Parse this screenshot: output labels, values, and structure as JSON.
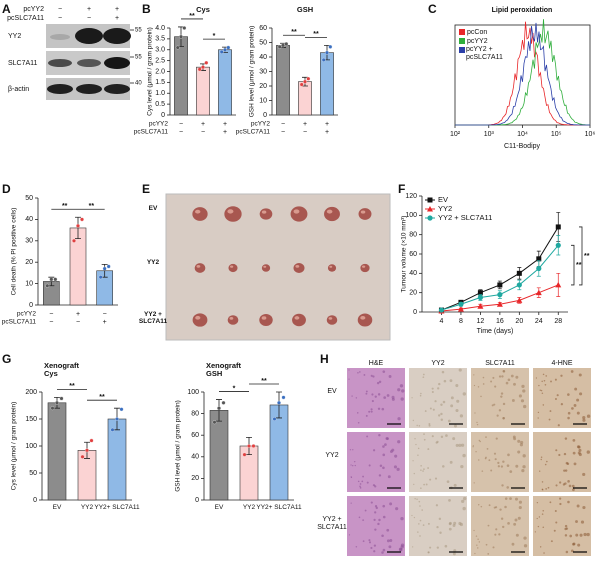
{
  "panel_labels": [
    "A",
    "B",
    "C",
    "D",
    "E",
    "F",
    "G",
    "H"
  ],
  "blot": {
    "conditions": [
      {
        "name": "pcYY2",
        "marks": [
          "−",
          "+",
          "+"
        ]
      },
      {
        "name": "pcSLC7A11",
        "marks": [
          "−",
          "−",
          "+"
        ]
      }
    ],
    "rows": [
      {
        "name": "YY2",
        "marker": 55
      },
      {
        "name": "SLC7A11",
        "marker": 55
      },
      {
        "name": "β-actin",
        "marker": 40
      }
    ]
  },
  "flow": {
    "title": "Lipid peroxidation",
    "xlabel": "C11-Bodipy",
    "xticks": [
      {
        "value": 100,
        "label": "10²"
      },
      {
        "value": 1000,
        "label": "10³"
      },
      {
        "value": 10000,
        "label": "10⁴"
      },
      {
        "value": 100000,
        "label": "10⁵"
      },
      {
        "value": 1000000,
        "label": "10⁶"
      }
    ],
    "legend": [
      {
        "name": "pcCon",
        "color": "#e8272a"
      },
      {
        "name": "pcYY2",
        "color": "#2fae3c"
      },
      {
        "name": "pcYY2 + pcSLC7A11",
        "color": "#2b3fa8"
      }
    ]
  },
  "tumor_photo": {
    "rows": [
      "EV",
      "YY2",
      "YY2 + SLC7A11"
    ]
  },
  "histology": {
    "columns": [
      "H&E",
      "YY2",
      "SLC7A11",
      "4-HNE"
    ],
    "rows": [
      "EV",
      "YY2",
      "YY2 + SLC7A11"
    ]
  },
  "chart_data": [
    {
      "type": "bar",
      "title": "Cys",
      "ylabel": "Cys level (μmol / gram protein)",
      "conditions": [
        {
          "name": "pcYY2",
          "marks": [
            "−",
            "+",
            "+"
          ]
        },
        {
          "name": "pcSLC7A11",
          "marks": [
            "−",
            "−",
            "+"
          ]
        }
      ],
      "values": [
        3.6,
        2.2,
        3.0
      ],
      "errors": [
        0.45,
        0.15,
        0.12
      ],
      "points": [
        [
          3.1,
          3.6,
          4.0
        ],
        [
          2.1,
          2.2,
          2.4
        ],
        [
          2.9,
          3.0,
          3.1
        ]
      ],
      "colors": [
        "#8c8c8c",
        "#fbd3d3",
        "#8fb9e6"
      ],
      "point_colors": [
        "#555555",
        "#e14040",
        "#3b6fc0"
      ],
      "ylim": [
        0,
        4
      ],
      "yticks": [
        0,
        0.5,
        {
          "value": 1,
          "label": "1.0"
        },
        1.5,
        {
          "value": 2,
          "label": "2.0"
        },
        2.5,
        {
          "value": 3,
          "label": "3.0"
        },
        3.5,
        {
          "value": 4,
          "label": "4.0"
        }
      ],
      "significance": [
        "**",
        "*"
      ]
    },
    {
      "type": "bar",
      "title": "GSH",
      "ylabel": "GSH level (μmol / gram protein)",
      "conditions": [
        {
          "name": "pcYY2",
          "marks": [
            "−",
            "+",
            "+"
          ]
        },
        {
          "name": "pcSLC7A11",
          "marks": [
            "−",
            "−",
            "+"
          ]
        }
      ],
      "values": [
        48,
        23,
        43
      ],
      "errors": [
        1.5,
        3,
        5
      ],
      "points": [
        [
          47,
          48,
          49
        ],
        [
          21,
          23,
          25
        ],
        [
          38,
          43,
          47
        ]
      ],
      "colors": [
        "#8c8c8c",
        "#fbd3d3",
        "#8fb9e6"
      ],
      "point_colors": [
        "#555555",
        "#e14040",
        "#3b6fc0"
      ],
      "ylim": [
        0,
        60
      ],
      "yticks": [
        0,
        10,
        20,
        30,
        40,
        50,
        60
      ],
      "significance": [
        "**",
        "**"
      ]
    },
    {
      "type": "bar",
      "ylabel": "Cell death (% PI positive cells)",
      "conditions": [
        {
          "name": "pcYY2",
          "marks": [
            "−",
            "+",
            "−"
          ]
        },
        {
          "name": "pcSLC7A11",
          "marks": [
            "−",
            "−",
            "+"
          ]
        }
      ],
      "values": [
        11,
        36,
        16
      ],
      "errors": [
        2,
        5,
        3
      ],
      "points": [
        [
          9,
          12,
          12
        ],
        [
          30,
          37,
          40
        ],
        [
          13,
          17,
          18
        ]
      ],
      "colors": [
        "#8c8c8c",
        "#fbd3d3",
        "#8fb9e6"
      ],
      "point_colors": [
        "#555555",
        "#e14040",
        "#3b6fc0"
      ],
      "ylim": [
        0,
        50
      ],
      "yticks": [
        0,
        10,
        20,
        30,
        40,
        50
      ],
      "significance": [
        "**",
        "**"
      ]
    },
    {
      "type": "line",
      "xlabel": "Time (days)",
      "ylabel": "Tumour volume (×10 mm³)",
      "x": [
        4,
        8,
        12,
        16,
        20,
        24,
        28
      ],
      "xlim": [
        0,
        30
      ],
      "xticks": [
        4,
        8,
        12,
        16,
        20,
        24,
        28
      ],
      "ylim": [
        0,
        120
      ],
      "yticks": [
        0,
        20,
        40,
        60,
        80,
        100,
        120
      ],
      "series": [
        {
          "name": "EV",
          "color": "#111111",
          "marker": "square",
          "values": [
            2,
            10,
            20,
            28,
            40,
            55,
            88
          ],
          "errors": [
            1,
            2,
            3,
            4,
            6,
            8,
            15
          ]
        },
        {
          "name": "YY2",
          "color": "#e8272a",
          "marker": "triangle",
          "values": [
            1,
            3,
            6,
            8,
            12,
            20,
            28
          ],
          "errors": [
            1,
            1,
            2,
            2,
            3,
            5,
            12
          ]
        },
        {
          "name": "YY2 + SLC7A11",
          "color": "#1fa8a0",
          "marker": "circle",
          "values": [
            2,
            8,
            15,
            18,
            28,
            45,
            69
          ],
          "errors": [
            1,
            2,
            3,
            4,
            5,
            8,
            10
          ]
        }
      ],
      "significance": [
        "**",
        "**"
      ]
    },
    {
      "type": "bar",
      "title": "Xenograft Cys",
      "ylabel": "Cys level (μmol / gram protein)",
      "categories": [
        "EV",
        "YY2",
        "YY2+ SLC7A11"
      ],
      "values": [
        180,
        92,
        150
      ],
      "errors": [
        10,
        15,
        20
      ],
      "points": [
        [
          170,
          180,
          188
        ],
        [
          80,
          92,
          110
        ],
        [
          130,
          150,
          168
        ]
      ],
      "colors": [
        "#8c8c8c",
        "#fbd3d3",
        "#8fb9e6"
      ],
      "point_colors": [
        "#555555",
        "#e14040",
        "#3b6fc0"
      ],
      "ylim": [
        0,
        200
      ],
      "yticks": [
        0,
        50,
        100,
        150,
        200
      ],
      "significance": [
        "**",
        "**"
      ]
    },
    {
      "type": "bar",
      "title": "Xenograft GSH",
      "ylabel": "GSH level (μmol / gram protein)",
      "categories": [
        "EV",
        "YY2",
        "YY2+ SLC7A11"
      ],
      "values": [
        83,
        50,
        88
      ],
      "errors": [
        10,
        8,
        12
      ],
      "points": [
        [
          72,
          85,
          90
        ],
        [
          42,
          50,
          50
        ],
        [
          75,
          90,
          95
        ]
      ],
      "colors": [
        "#8c8c8c",
        "#fbd3d3",
        "#8fb9e6"
      ],
      "point_colors": [
        "#555555",
        "#e14040",
        "#3b6fc0"
      ],
      "ylim": [
        0,
        100
      ],
      "yticks": [
        0,
        20,
        40,
        60,
        80,
        100
      ],
      "significance": [
        "*",
        "**"
      ]
    }
  ]
}
